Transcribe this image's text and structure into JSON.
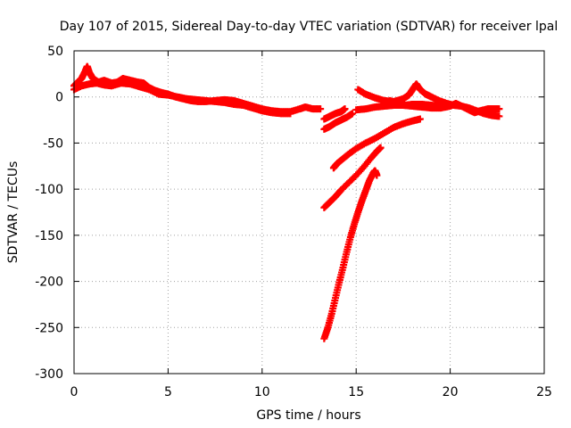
{
  "chart_data": {
    "type": "scatter",
    "title": "Day 107 of 2015, Sidereal Day-to-day VTEC variation (SDTVAR) for receiver lpal",
    "xlabel": "GPS time / hours",
    "ylabel": "SDTVAR / TECUs",
    "xlim": [
      0,
      25
    ],
    "ylim": [
      -300,
      50
    ],
    "xticks": [
      0,
      5,
      10,
      15,
      20,
      25
    ],
    "yticks": [
      50,
      0,
      -50,
      -100,
      -150,
      -200,
      -250,
      -300
    ],
    "grid": true,
    "marker": "+",
    "series_color": "#ff0000",
    "series": [
      {
        "points": [
          [
            0.0,
            12
          ],
          [
            0.2,
            16
          ],
          [
            0.4,
            20
          ],
          [
            0.6,
            28
          ],
          [
            0.7,
            33
          ],
          [
            0.8,
            27
          ],
          [
            1.0,
            20
          ],
          [
            1.3,
            16
          ],
          [
            1.6,
            18
          ],
          [
            2.0,
            15
          ],
          [
            2.3,
            16
          ],
          [
            2.6,
            20
          ],
          [
            3.0,
            18
          ],
          [
            3.4,
            16
          ],
          [
            3.7,
            15
          ],
          [
            4.0,
            10
          ],
          [
            4.3,
            7
          ],
          [
            4.6,
            5
          ],
          [
            5.0,
            3
          ],
          [
            5.4,
            0
          ],
          [
            5.8,
            -2
          ],
          [
            6.2,
            -4
          ],
          [
            6.6,
            -5
          ],
          [
            7.0,
            -5
          ],
          [
            7.5,
            -4
          ],
          [
            8.0,
            -3
          ],
          [
            8.5,
            -4
          ],
          [
            9.0,
            -7
          ],
          [
            9.5,
            -10
          ],
          [
            10.0,
            -13
          ],
          [
            10.5,
            -15
          ],
          [
            11.0,
            -16
          ],
          [
            11.5,
            -16
          ],
          [
            12.0,
            -13
          ],
          [
            12.3,
            -11
          ],
          [
            12.7,
            -13
          ],
          [
            13.1,
            -13
          ]
        ]
      },
      {
        "points": [
          [
            0.0,
            8
          ],
          [
            0.4,
            12
          ],
          [
            0.8,
            14
          ],
          [
            1.2,
            15
          ],
          [
            1.6,
            13
          ],
          [
            2.0,
            12
          ],
          [
            2.5,
            15
          ],
          [
            3.0,
            14
          ],
          [
            3.5,
            11
          ],
          [
            4.0,
            8
          ],
          [
            4.5,
            3
          ],
          [
            5.0,
            2
          ],
          [
            5.5,
            0
          ],
          [
            6.0,
            -2
          ],
          [
            6.5,
            -3
          ],
          [
            7.0,
            -4
          ],
          [
            7.5,
            -5
          ],
          [
            8.0,
            -6
          ],
          [
            8.5,
            -8
          ],
          [
            9.0,
            -9
          ],
          [
            9.5,
            -12
          ],
          [
            10.0,
            -15
          ],
          [
            10.5,
            -17
          ],
          [
            11.0,
            -18
          ],
          [
            11.5,
            -18
          ]
        ]
      },
      {
        "points": [
          [
            13.3,
            -24
          ],
          [
            13.6,
            -21
          ],
          [
            13.9,
            -18
          ],
          [
            14.2,
            -16
          ],
          [
            14.4,
            -13
          ]
        ]
      },
      {
        "points": [
          [
            13.3,
            -35
          ],
          [
            13.6,
            -32
          ],
          [
            13.9,
            -28
          ],
          [
            14.2,
            -25
          ],
          [
            14.5,
            -22
          ],
          [
            14.8,
            -18
          ]
        ]
      },
      {
        "points": [
          [
            15.0,
            -14
          ],
          [
            15.5,
            -13
          ],
          [
            16.0,
            -11
          ],
          [
            16.5,
            -10
          ],
          [
            17.0,
            -9
          ],
          [
            17.5,
            -9
          ],
          [
            18.0,
            -10
          ],
          [
            18.5,
            -11
          ],
          [
            19.0,
            -12
          ],
          [
            19.5,
            -12
          ],
          [
            20.0,
            -10
          ],
          [
            20.3,
            -7
          ],
          [
            20.6,
            -10
          ],
          [
            21.0,
            -14
          ],
          [
            21.3,
            -17
          ],
          [
            21.6,
            -15
          ],
          [
            22.0,
            -13
          ],
          [
            22.3,
            -13
          ],
          [
            22.6,
            -13
          ]
        ]
      },
      {
        "points": [
          [
            15.1,
            8
          ],
          [
            15.5,
            3
          ],
          [
            16.0,
            -1
          ],
          [
            16.5,
            -4
          ],
          [
            17.0,
            -5
          ],
          [
            17.5,
            -2
          ],
          [
            17.8,
            2
          ],
          [
            18.0,
            8
          ],
          [
            18.2,
            14
          ],
          [
            18.4,
            8
          ],
          [
            18.7,
            3
          ],
          [
            19.0,
            0
          ],
          [
            19.4,
            -4
          ],
          [
            19.8,
            -7
          ],
          [
            20.2,
            -9
          ],
          [
            20.6,
            -10
          ],
          [
            21.0,
            -12
          ],
          [
            21.4,
            -15
          ],
          [
            21.8,
            -18
          ],
          [
            22.2,
            -20
          ],
          [
            22.6,
            -21
          ]
        ]
      },
      {
        "points": [
          [
            16.8,
            -4
          ],
          [
            17.2,
            -7
          ],
          [
            17.6,
            -9
          ],
          [
            18.0,
            -8
          ],
          [
            18.5,
            -8
          ],
          [
            19.0,
            -9
          ],
          [
            19.5,
            -10
          ],
          [
            20.0,
            -9
          ],
          [
            20.3,
            -8
          ]
        ]
      },
      {
        "points": [
          [
            13.8,
            -77
          ],
          [
            14.0,
            -72
          ],
          [
            14.3,
            -67
          ],
          [
            14.6,
            -62
          ],
          [
            15.0,
            -56
          ],
          [
            15.5,
            -50
          ],
          [
            16.0,
            -45
          ],
          [
            16.5,
            -39
          ],
          [
            17.0,
            -33
          ],
          [
            17.5,
            -29
          ],
          [
            18.0,
            -26
          ],
          [
            18.4,
            -24
          ]
        ]
      },
      {
        "points": [
          [
            13.3,
            -120
          ],
          [
            13.6,
            -114
          ],
          [
            13.9,
            -108
          ],
          [
            14.2,
            -101
          ],
          [
            14.6,
            -93
          ],
          [
            15.0,
            -85
          ],
          [
            15.4,
            -76
          ],
          [
            15.8,
            -66
          ],
          [
            16.1,
            -59
          ],
          [
            16.3,
            -55
          ]
        ]
      },
      {
        "points": [
          [
            13.3,
            -262
          ],
          [
            13.5,
            -250
          ],
          [
            13.7,
            -235
          ],
          [
            13.9,
            -218
          ],
          [
            14.1,
            -201
          ],
          [
            14.3,
            -185
          ],
          [
            14.5,
            -168
          ],
          [
            14.7,
            -152
          ],
          [
            14.9,
            -138
          ],
          [
            15.1,
            -125
          ],
          [
            15.3,
            -113
          ],
          [
            15.5,
            -102
          ],
          [
            15.7,
            -91
          ],
          [
            15.9,
            -83
          ],
          [
            16.0,
            -80
          ],
          [
            16.1,
            -85
          ]
        ]
      }
    ]
  }
}
